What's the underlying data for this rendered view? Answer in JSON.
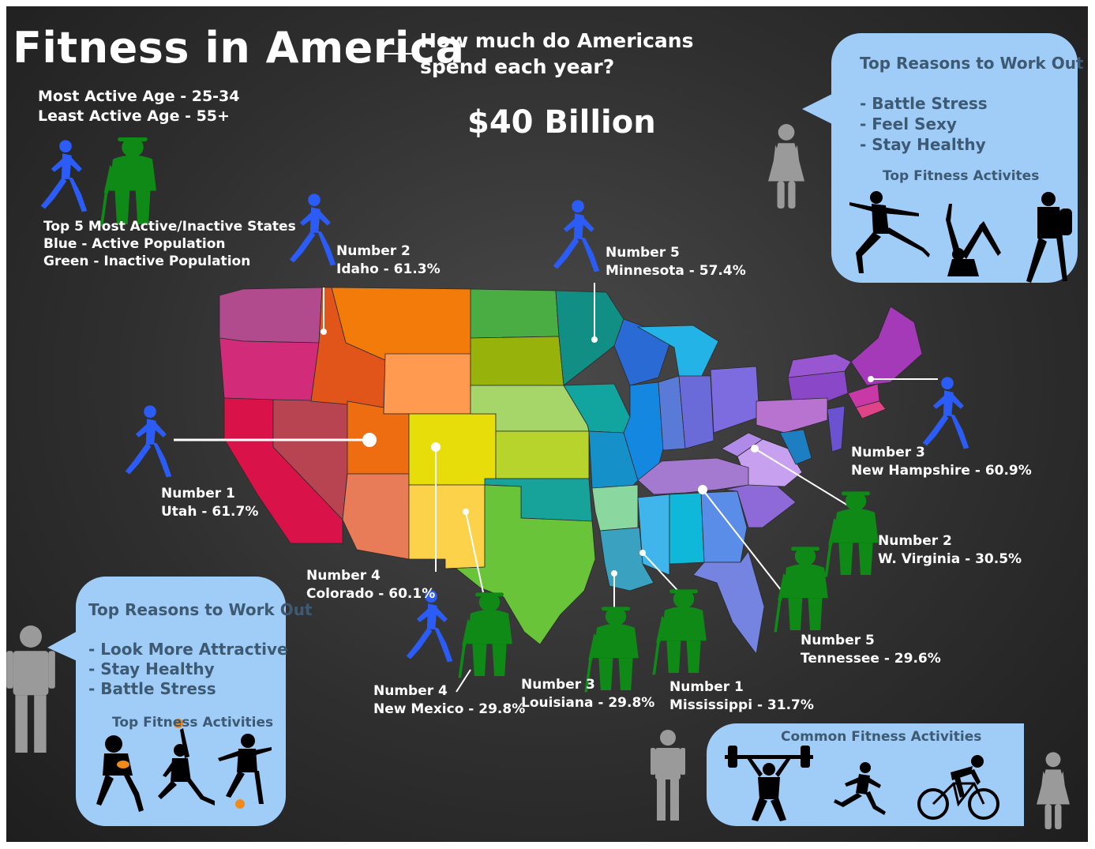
{
  "header": {
    "title": "Fitness in America",
    "question": [
      "How much do Americans",
      "spend each year?"
    ],
    "amount": "$40 Billion"
  },
  "ages": {
    "most": "Most Active Age - 25-34",
    "least": "Least Active Age - 55+"
  },
  "legend": {
    "heading": "Top 5 Most Active/Inactive States",
    "blue": "Blue - Active Population",
    "green": "Green - Inactive Population"
  },
  "colors": {
    "active": "#2b5cf5",
    "inactive": "#0f8a17",
    "bubble": "#9fcdf8",
    "bubble_text": "#3e5a73"
  },
  "states": {
    "utah": {
      "rank": "Number 1",
      "name": "Utah - 61.7%"
    },
    "idaho": {
      "rank": "Number 2",
      "name": "Idaho - 61.3%"
    },
    "new_hampshire": {
      "rank": "Number 3",
      "name": "New Hampshire - 60.9%"
    },
    "colorado": {
      "rank": "Number 4",
      "name": "Colorado - 60.1%"
    },
    "minnesota": {
      "rank": "Number 5",
      "name": "Minnesota - 57.4%"
    },
    "mississippi": {
      "rank": "Number 1",
      "name": "Mississippi - 31.7%"
    },
    "west_virginia": {
      "rank": "Number 2",
      "name": "W. Virginia - 30.5%"
    },
    "louisiana": {
      "rank": "Number 3",
      "name": "Louisiana - 29.8%"
    },
    "new_mexico": {
      "rank": "Number 4",
      "name": "New Mexico - 29.8%"
    },
    "tennessee": {
      "rank": "Number 5",
      "name": "Tennessee - 29.6%"
    }
  },
  "female_bubble": {
    "heading": "Top Reasons to Work Out",
    "reasons": [
      "- Battle Stress",
      "- Feel Sexy",
      "- Stay Healthy"
    ],
    "activities_heading": "Top Fitness Activites",
    "activity_icons": [
      "dancer-icon",
      "yoga-icon",
      "hiker-icon"
    ]
  },
  "male_bubble": {
    "heading": "Top Reasons to Work Out",
    "reasons": [
      "- Look More Attractive",
      "- Stay Healthy",
      "- Battle Stress"
    ],
    "activities_heading": "Top Fitness Activities",
    "activity_icons": [
      "football-icon",
      "basketball-icon",
      "soccer-icon"
    ]
  },
  "common": {
    "heading": "Common Fitness Activities",
    "activity_icons": [
      "weightlifting-icon",
      "running-icon",
      "cycling-icon"
    ]
  }
}
